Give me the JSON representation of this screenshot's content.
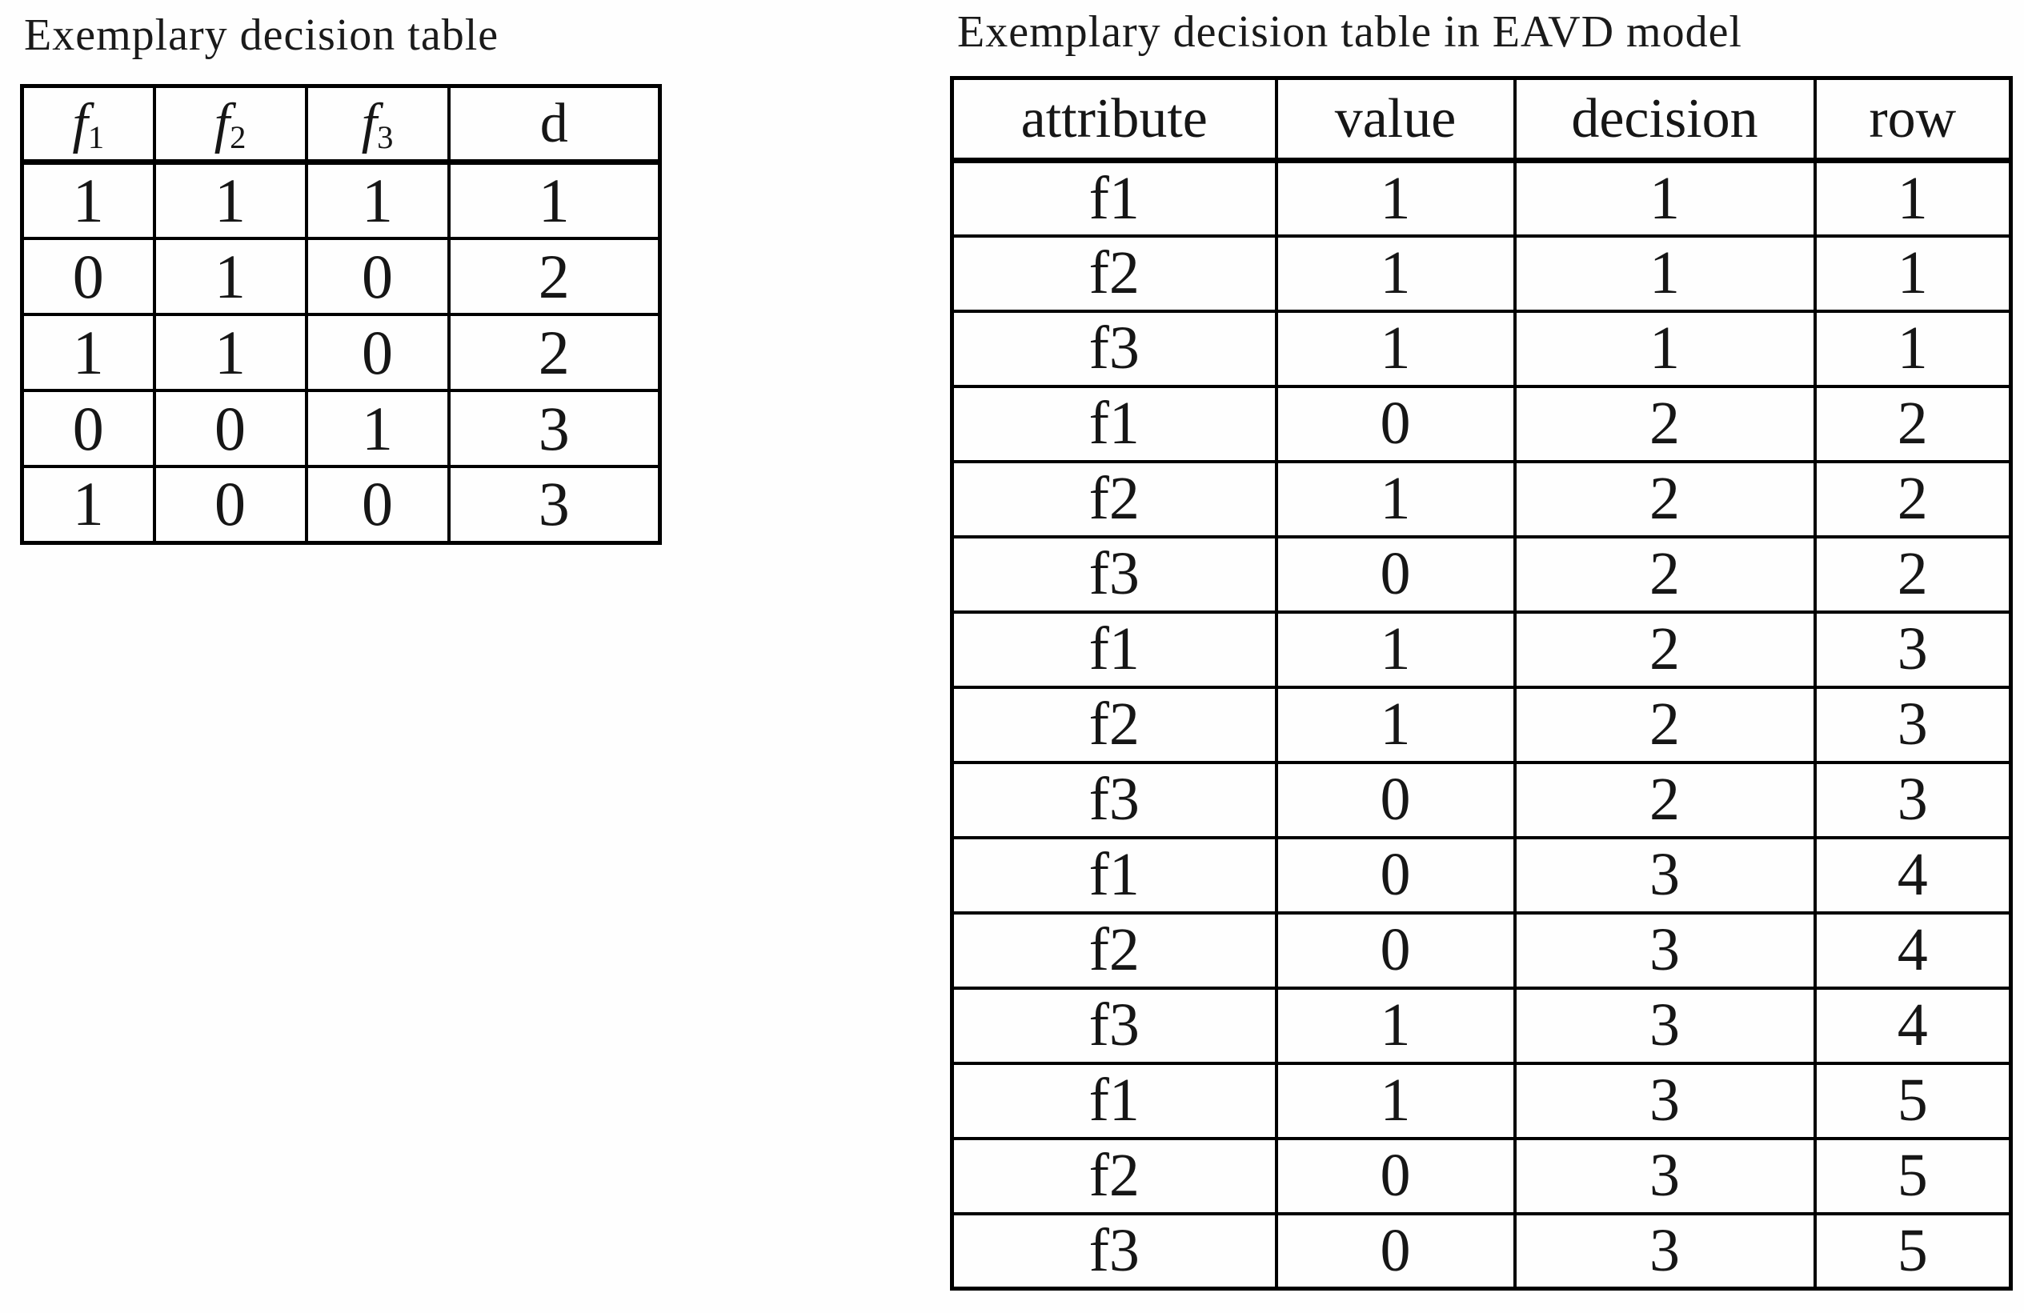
{
  "page": {
    "background_color": "#fefefe",
    "text_color": "#161616",
    "border_color": "#000000"
  },
  "left_figure": {
    "title": "Exemplary decision table",
    "table": {
      "headers": [
        {
          "text": "f",
          "sub": "1",
          "italic": true
        },
        {
          "text": "f",
          "sub": "2",
          "italic": true
        },
        {
          "text": "f",
          "sub": "3",
          "italic": true
        },
        {
          "text": "d",
          "sub": "",
          "italic": false
        }
      ],
      "rows": [
        [
          "1",
          "1",
          "1",
          "1"
        ],
        [
          "0",
          "1",
          "0",
          "2"
        ],
        [
          "1",
          "1",
          "0",
          "2"
        ],
        [
          "0",
          "0",
          "1",
          "3"
        ],
        [
          "1",
          "0",
          "0",
          "3"
        ]
      ]
    }
  },
  "right_figure": {
    "title": "Exemplary decision table in EAVD model",
    "table": {
      "headers": [
        {
          "text": "attribute",
          "sub": "",
          "italic": false
        },
        {
          "text": "value",
          "sub": "",
          "italic": false
        },
        {
          "text": "decision",
          "sub": "",
          "italic": false
        },
        {
          "text": "row",
          "sub": "",
          "italic": false
        }
      ],
      "rows": [
        [
          "f1",
          "1",
          "1",
          "1"
        ],
        [
          "f2",
          "1",
          "1",
          "1"
        ],
        [
          "f3",
          "1",
          "1",
          "1"
        ],
        [
          "f1",
          "0",
          "2",
          "2"
        ],
        [
          "f2",
          "1",
          "2",
          "2"
        ],
        [
          "f3",
          "0",
          "2",
          "2"
        ],
        [
          "f1",
          "1",
          "2",
          "3"
        ],
        [
          "f2",
          "1",
          "2",
          "3"
        ],
        [
          "f3",
          "0",
          "2",
          "3"
        ],
        [
          "f1",
          "0",
          "3",
          "4"
        ],
        [
          "f2",
          "0",
          "3",
          "4"
        ],
        [
          "f3",
          "1",
          "3",
          "4"
        ],
        [
          "f1",
          "1",
          "3",
          "5"
        ],
        [
          "f2",
          "0",
          "3",
          "5"
        ],
        [
          "f3",
          "0",
          "3",
          "5"
        ]
      ]
    }
  }
}
